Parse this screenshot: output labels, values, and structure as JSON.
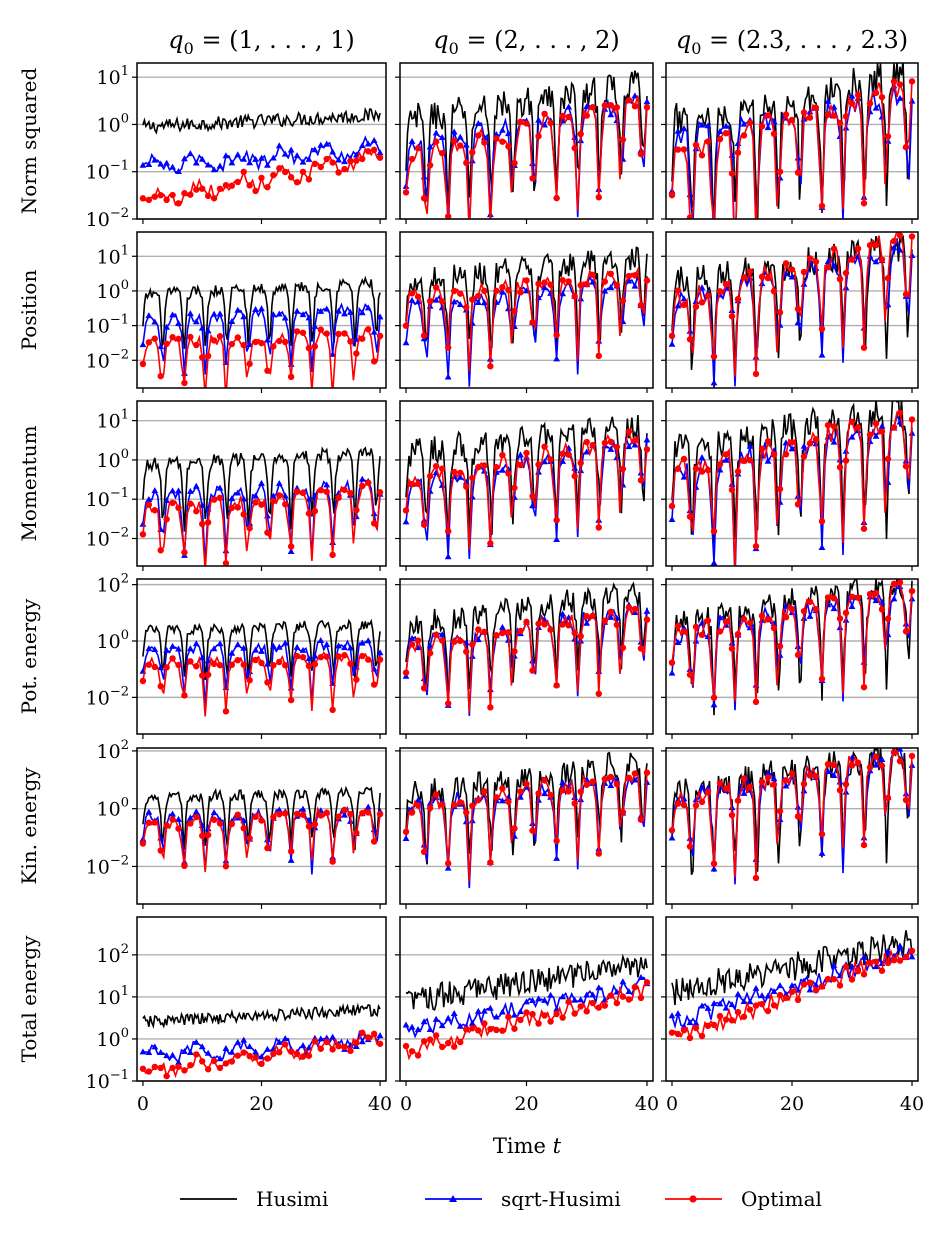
{
  "figure": {
    "xlabel": "Time t",
    "legend_position": "bottom-center",
    "columns": [
      {
        "title": "q0 = (1, . . . , 1)",
        "base": "q",
        "subscript": "0",
        "value": " = (1, . . . , 1)"
      },
      {
        "title": "q0 = (2, . . . , 2)",
        "base": "q",
        "subscript": "0",
        "value": " = (2, . . . , 2)"
      },
      {
        "title": "q0 = (2.3, . . . , 2.3)",
        "base": "q",
        "subscript": "0",
        "value": " = (2.3, . . . , 2.3)"
      }
    ],
    "xticks": [
      "0",
      "20",
      "40"
    ]
  },
  "colors": {
    "Husimi": "#000000",
    "sqrt-Husimi": "#0000ff",
    "Optimal": "#ff0000",
    "grid": "#b0b0b0"
  },
  "legend": [
    {
      "label": "Husimi",
      "color": "#000000",
      "marker": "none"
    },
    {
      "label": "sqrt-Husimi",
      "color": "#0000ff",
      "marker": "triangle"
    },
    {
      "label": "Optimal",
      "color": "#ff0000",
      "marker": "circle"
    }
  ],
  "chart_data": {
    "type": "line",
    "yscale": "log",
    "xlim": [
      -1,
      41
    ],
    "x_range": [
      0,
      40
    ],
    "series_names": [
      "Husimi",
      "sqrt-Husimi",
      "Optimal"
    ],
    "rows": [
      {
        "ylabel": "Norm squared",
        "ylim_log10": [
          -2,
          1.3
        ],
        "yticks": [
          {
            "e": -2,
            "label": "10-2"
          },
          {
            "e": -1,
            "label": "10-1"
          },
          {
            "e": 0,
            "label": "100"
          },
          {
            "e": 1,
            "label": "101"
          }
        ]
      },
      {
        "ylabel": "Position",
        "ylim_log10": [
          -2.8,
          1.7
        ],
        "yticks": [
          {
            "e": -2,
            "label": "10-2"
          },
          {
            "e": -1,
            "label": "10-1"
          },
          {
            "e": 0,
            "label": "100"
          },
          {
            "e": 1,
            "label": "101"
          }
        ]
      },
      {
        "ylabel": "Momentum",
        "ylim_log10": [
          -2.7,
          1.5
        ],
        "yticks": [
          {
            "e": -2,
            "label": "10-2"
          },
          {
            "e": -1,
            "label": "10-1"
          },
          {
            "e": 0,
            "label": "100"
          },
          {
            "e": 1,
            "label": "101"
          }
        ]
      },
      {
        "ylabel": "Pot. energy",
        "ylim_log10": [
          -3.3,
          2.2
        ],
        "yticks": [
          {
            "e": -2,
            "label": "10-2"
          },
          {
            "e": 0,
            "label": "100"
          },
          {
            "e": 2,
            "label": "102"
          }
        ]
      },
      {
        "ylabel": "Kin. energy",
        "ylim_log10": [
          -3.3,
          2.1
        ],
        "yticks": [
          {
            "e": -2,
            "label": "10-2"
          },
          {
            "e": 0,
            "label": "100"
          },
          {
            "e": 2,
            "label": "102"
          }
        ]
      },
      {
        "ylabel": "Total energy",
        "ylim_log10": [
          -1,
          2.9
        ],
        "yticks": [
          {
            "e": -1,
            "label": "10-1"
          },
          {
            "e": 0,
            "label": "100"
          },
          {
            "e": 1,
            "label": "101"
          },
          {
            "e": 2,
            "label": "102"
          }
        ]
      }
    ],
    "panels": [
      [
        {
          "growth": 0.3,
          "osc": 0,
          "Husimi": {
            "start": -0.05,
            "end": 0.2
          },
          "sqrt-Husimi": {
            "start": -0.9,
            "end": -0.5
          },
          "Optimal": {
            "start": -1.6,
            "end": -0.7
          }
        },
        {
          "growth": 0.8,
          "osc": 1,
          "Husimi": {
            "start": 0.1,
            "end": 0.9
          },
          "sqrt-Husimi": {
            "start": -0.4,
            "end": 0.5
          },
          "Optimal": {
            "start": -0.7,
            "end": 0.6
          }
        },
        {
          "growth": 1.2,
          "osc": 1,
          "Husimi": {
            "start": 0.1,
            "end": 1.1
          },
          "sqrt-Husimi": {
            "start": -0.3,
            "end": 0.7
          },
          "Optimal": {
            "start": -0.6,
            "end": 0.9
          }
        }
      ],
      [
        {
          "growth": 0.5,
          "osc": 1,
          "Husimi": {
            "start": -0.1,
            "end": 0.25
          },
          "sqrt-Husimi": {
            "start": -0.8,
            "end": -0.5
          },
          "Optimal": {
            "start": -1.5,
            "end": -1.2
          }
        },
        {
          "growth": 1.0,
          "osc": 1,
          "Husimi": {
            "start": 0.3,
            "end": 1.0
          },
          "sqrt-Husimi": {
            "start": -0.5,
            "end": 0.4
          },
          "Optimal": {
            "start": -0.2,
            "end": 0.6
          }
        },
        {
          "growth": 1.5,
          "osc": 1,
          "Husimi": {
            "start": 0.3,
            "end": 1.3
          },
          "sqrt-Husimi": {
            "start": -0.3,
            "end": 1.3
          },
          "Optimal": {
            "start": -0.3,
            "end": 1.6
          }
        }
      ],
      [
        {
          "growth": 0.5,
          "osc": 1,
          "Husimi": {
            "start": -0.1,
            "end": 0.2
          },
          "sqrt-Husimi": {
            "start": -0.9,
            "end": -0.6
          },
          "Optimal": {
            "start": -1.3,
            "end": -0.7
          }
        },
        {
          "growth": 1.0,
          "osc": 1,
          "Husimi": {
            "start": 0.2,
            "end": 0.9
          },
          "sqrt-Husimi": {
            "start": -0.6,
            "end": 0.6
          },
          "Optimal": {
            "start": -0.5,
            "end": 0.6
          }
        },
        {
          "growth": 1.5,
          "osc": 1,
          "Husimi": {
            "start": 0.4,
            "end": 1.3
          },
          "sqrt-Husimi": {
            "start": -0.3,
            "end": 1.0
          },
          "Optimal": {
            "start": -0.2,
            "end": 1.1
          }
        }
      ],
      [
        {
          "growth": 0.6,
          "osc": 1,
          "Husimi": {
            "start": 0.4,
            "end": 0.6
          },
          "sqrt-Husimi": {
            "start": -0.3,
            "end": -0.1
          },
          "Optimal": {
            "start": -0.8,
            "end": -0.5
          }
        },
        {
          "growth": 1.4,
          "osc": 1,
          "Husimi": {
            "start": 0.6,
            "end": 1.8
          },
          "sqrt-Husimi": {
            "start": -0.1,
            "end": 1.2
          },
          "Optimal": {
            "start": -0.2,
            "end": 1.2
          }
        },
        {
          "growth": 1.8,
          "osc": 1,
          "Husimi": {
            "start": 0.7,
            "end": 2.1
          },
          "sqrt-Husimi": {
            "start": 0.2,
            "end": 1.9
          },
          "Optimal": {
            "start": 0.3,
            "end": 1.9
          }
        }
      ],
      [
        {
          "growth": 0.6,
          "osc": 1,
          "Husimi": {
            "start": 0.4,
            "end": 0.6
          },
          "sqrt-Husimi": {
            "start": -0.3,
            "end": -0.1
          },
          "Optimal": {
            "start": -0.6,
            "end": 0.0
          }
        },
        {
          "growth": 1.4,
          "osc": 1,
          "Husimi": {
            "start": 0.5,
            "end": 1.7
          },
          "sqrt-Husimi": {
            "start": 0.1,
            "end": 1.1
          },
          "Optimal": {
            "start": 0.1,
            "end": 1.2
          }
        },
        {
          "growth": 1.8,
          "osc": 1,
          "Husimi": {
            "start": 0.6,
            "end": 2.0
          },
          "sqrt-Husimi": {
            "start": 0.3,
            "end": 1.95
          },
          "Optimal": {
            "start": 0.3,
            "end": 2.0
          }
        }
      ],
      [
        {
          "growth": 0.3,
          "osc": 0,
          "Husimi": {
            "start": 0.4,
            "end": 0.7
          },
          "sqrt-Husimi": {
            "start": -0.4,
            "end": 0.0
          },
          "Optimal": {
            "start": -0.8,
            "end": 0.0
          }
        },
        {
          "growth": 0.8,
          "osc": 0,
          "Husimi": {
            "start": 0.9,
            "end": 1.8
          },
          "sqrt-Husimi": {
            "start": 0.2,
            "end": 1.3
          },
          "Optimal": {
            "start": -0.3,
            "end": 1.2
          }
        },
        {
          "growth": 1.0,
          "osc": 0,
          "Husimi": {
            "start": 1.1,
            "end": 2.3
          },
          "sqrt-Husimi": {
            "start": 0.4,
            "end": 2.1
          },
          "Optimal": {
            "start": 0.0,
            "end": 2.1
          }
        }
      ]
    ]
  }
}
